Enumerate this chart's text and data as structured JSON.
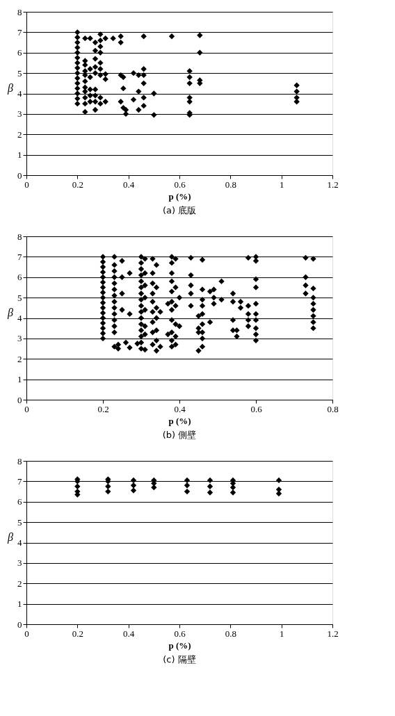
{
  "chart_data": [
    {
      "type": "scatter",
      "title": "(a) 底版",
      "xlabel": "p (%)",
      "ylabel": "β",
      "xlim": [
        0,
        1.2
      ],
      "xticks": [
        0,
        0.2,
        0.4,
        0.6,
        0.8,
        1,
        1.2
      ],
      "ylim": [
        0,
        8
      ],
      "yticks": [
        0,
        1,
        2,
        3,
        4,
        5,
        6,
        7,
        8
      ],
      "grid": "y",
      "marker": "diamond",
      "legend": false,
      "series": [
        {
          "color": "#000000",
          "x": [
            0.2,
            0.2,
            0.2,
            0.2,
            0.2,
            0.2,
            0.2,
            0.2,
            0.2,
            0.2,
            0.2,
            0.2,
            0.2,
            0.2,
            0.2,
            0.23,
            0.23,
            0.23,
            0.23,
            0.23,
            0.23,
            0.23,
            0.23,
            0.23,
            0.23,
            0.23,
            0.25,
            0.25,
            0.25,
            0.25,
            0.25,
            0.25,
            0.27,
            0.27,
            0.27,
            0.27,
            0.27,
            0.27,
            0.27,
            0.27,
            0.27,
            0.29,
            0.29,
            0.29,
            0.29,
            0.29,
            0.29,
            0.29,
            0.29,
            0.29,
            0.31,
            0.31,
            0.31,
            0.31,
            0.34,
            0.37,
            0.37,
            0.37,
            0.37,
            0.38,
            0.38,
            0.38,
            0.39,
            0.39,
            0.42,
            0.42,
            0.44,
            0.44,
            0.44,
            0.46,
            0.46,
            0.46,
            0.46,
            0.46,
            0.46,
            0.5,
            0.5,
            0.57,
            0.64,
            0.64,
            0.64,
            0.64,
            0.64,
            0.64,
            0.64,
            0.68,
            0.68,
            0.68,
            0.68,
            1.06,
            1.06,
            1.06,
            1.06
          ],
          "values": [
            3.5,
            3.75,
            4.0,
            4.25,
            4.5,
            4.75,
            5.0,
            5.25,
            5.5,
            5.75,
            6.0,
            6.25,
            6.5,
            6.75,
            7.0,
            3.1,
            3.5,
            3.8,
            4.1,
            4.3,
            4.6,
            4.9,
            5.1,
            5.4,
            5.6,
            6.7,
            3.6,
            3.9,
            4.2,
            4.8,
            5.2,
            6.7,
            3.2,
            3.6,
            3.9,
            4.2,
            5.0,
            5.3,
            5.7,
            6.1,
            6.5,
            3.5,
            3.8,
            4.9,
            5.2,
            5.5,
            6.0,
            6.3,
            6.6,
            6.9,
            3.6,
            4.7,
            4.95,
            6.7,
            6.7,
            3.6,
            4.9,
            6.5,
            6.8,
            4.25,
            3.3,
            4.8,
            3.0,
            3.2,
            3.7,
            5.0,
            3.2,
            4.1,
            4.9,
            3.4,
            3.8,
            4.5,
            4.9,
            5.2,
            6.8,
            2.95,
            4.0,
            6.8,
            2.95,
            3.05,
            3.6,
            3.8,
            4.5,
            4.8,
            5.1,
            4.5,
            4.65,
            6.0,
            6.85,
            3.6,
            3.8,
            4.1,
            4.4
          ]
        }
      ]
    },
    {
      "type": "scatter",
      "title": "(b) 側壁",
      "xlabel": "p (%)",
      "ylabel": "β",
      "xlim": [
        0,
        0.8
      ],
      "xticks": [
        0,
        0.2,
        0.4,
        0.6,
        0.8
      ],
      "ylim": [
        0,
        8
      ],
      "yticks": [
        0,
        1,
        2,
        3,
        4,
        5,
        6,
        7,
        8
      ],
      "grid": "y",
      "marker": "diamond",
      "legend": false,
      "series": [
        {
          "color": "#000000",
          "x": [
            0.2,
            0.2,
            0.2,
            0.2,
            0.2,
            0.2,
            0.2,
            0.2,
            0.2,
            0.2,
            0.2,
            0.2,
            0.2,
            0.2,
            0.2,
            0.2,
            0.2,
            0.23,
            0.23,
            0.23,
            0.23,
            0.23,
            0.23,
            0.23,
            0.23,
            0.23,
            0.23,
            0.23,
            0.23,
            0.23,
            0.23,
            0.24,
            0.24,
            0.25,
            0.25,
            0.25,
            0.25,
            0.26,
            0.27,
            0.27,
            0.27,
            0.29,
            0.3,
            0.3,
            0.3,
            0.3,
            0.3,
            0.3,
            0.3,
            0.3,
            0.3,
            0.3,
            0.3,
            0.3,
            0.3,
            0.3,
            0.3,
            0.3,
            0.31,
            0.31,
            0.31,
            0.31,
            0.31,
            0.31,
            0.31,
            0.31,
            0.33,
            0.33,
            0.33,
            0.33,
            0.33,
            0.33,
            0.33,
            0.33,
            0.33,
            0.34,
            0.34,
            0.34,
            0.34,
            0.34,
            0.34,
            0.34,
            0.35,
            0.35,
            0.37,
            0.37,
            0.38,
            0.38,
            0.38,
            0.38,
            0.38,
            0.38,
            0.38,
            0.38,
            0.38,
            0.38,
            0.38,
            0.39,
            0.39,
            0.39,
            0.39,
            0.39,
            0.39,
            0.4,
            0.4,
            0.43,
            0.43,
            0.43,
            0.43,
            0.43,
            0.45,
            0.45,
            0.45,
            0.45,
            0.46,
            0.46,
            0.46,
            0.46,
            0.46,
            0.46,
            0.46,
            0.46,
            0.46,
            0.48,
            0.48,
            0.49,
            0.49,
            0.49,
            0.51,
            0.51,
            0.54,
            0.54,
            0.54,
            0.54,
            0.55,
            0.55,
            0.56,
            0.56,
            0.58,
            0.58,
            0.58,
            0.58,
            0.58,
            0.6,
            0.6,
            0.6,
            0.6,
            0.6,
            0.6,
            0.6,
            0.6,
            0.6,
            0.6,
            0.73,
            0.73,
            0.73,
            0.73,
            0.75,
            0.75,
            0.75,
            0.75,
            0.75,
            0.75,
            0.75,
            0.75
          ],
          "values": [
            3.0,
            3.25,
            3.5,
            3.75,
            4.0,
            4.25,
            4.5,
            4.75,
            5.0,
            5.25,
            5.5,
            5.75,
            6.0,
            6.25,
            6.5,
            6.75,
            7.0,
            2.6,
            3.3,
            3.6,
            3.9,
            4.2,
            4.5,
            4.8,
            5.1,
            5.4,
            5.7,
            6.0,
            6.3,
            6.6,
            7.0,
            2.5,
            2.7,
            4.4,
            5.2,
            6.0,
            6.8,
            2.8,
            2.55,
            4.2,
            6.2,
            2.75,
            2.5,
            2.8,
            3.1,
            3.4,
            3.7,
            4.0,
            4.3,
            4.6,
            4.9,
            5.2,
            5.5,
            5.8,
            6.1,
            6.4,
            6.7,
            7.0,
            2.45,
            3.2,
            3.6,
            4.4,
            5.0,
            5.6,
            6.2,
            6.9,
            2.7,
            3.3,
            3.8,
            4.3,
            4.8,
            5.2,
            5.7,
            6.2,
            6.9,
            2.4,
            2.9,
            3.4,
            4.0,
            4.5,
            5.5,
            6.6,
            2.6,
            4.3,
            3.2,
            4.7,
            2.6,
            2.9,
            3.3,
            3.9,
            4.4,
            4.8,
            5.3,
            5.8,
            6.2,
            6.7,
            7.0,
            2.7,
            3.1,
            3.7,
            4.6,
            5.5,
            6.9,
            3.6,
            5.0,
            4.6,
            5.2,
            5.6,
            6.1,
            6.95,
            2.4,
            3.3,
            3.5,
            4.1,
            2.6,
            3.0,
            3.3,
            3.7,
            4.2,
            4.6,
            4.9,
            5.4,
            6.85,
            3.8,
            5.3,
            4.7,
            5.0,
            5.4,
            4.9,
            5.8,
            3.4,
            3.9,
            4.8,
            5.2,
            3.1,
            3.4,
            4.5,
            4.8,
            3.6,
            3.9,
            4.2,
            4.6,
            6.95,
            2.9,
            3.2,
            3.5,
            3.9,
            4.2,
            4.7,
            5.5,
            5.9,
            6.8,
            7.0,
            5.2,
            5.6,
            6.0,
            6.95,
            3.5,
            3.8,
            4.1,
            4.4,
            4.7,
            5.0,
            5.45,
            6.9
          ]
        }
      ]
    },
    {
      "type": "scatter",
      "title": "(c) 隔壁",
      "xlabel": "p (%)",
      "ylabel": "β",
      "xlim": [
        0,
        1.2
      ],
      "xticks": [
        0,
        0.2,
        0.4,
        0.6,
        0.8,
        1,
        1.2
      ],
      "ylim": [
        0,
        8
      ],
      "yticks": [
        0,
        1,
        2,
        3,
        4,
        5,
        6,
        7,
        8
      ],
      "grid": "y",
      "marker": "diamond",
      "legend": false,
      "series": [
        {
          "color": "#000000",
          "x": [
            0.2,
            0.2,
            0.2,
            0.2,
            0.2,
            0.32,
            0.32,
            0.32,
            0.32,
            0.42,
            0.42,
            0.42,
            0.5,
            0.5,
            0.5,
            0.63,
            0.63,
            0.63,
            0.72,
            0.72,
            0.72,
            0.81,
            0.81,
            0.81,
            0.81,
            0.99,
            0.99,
            0.99
          ],
          "values": [
            6.35,
            6.5,
            6.75,
            7.0,
            7.1,
            6.5,
            6.75,
            7.0,
            7.1,
            6.55,
            6.8,
            7.05,
            6.7,
            6.9,
            7.05,
            6.5,
            6.8,
            7.05,
            6.45,
            6.75,
            7.05,
            6.45,
            6.7,
            6.9,
            7.05,
            6.4,
            6.6,
            7.05
          ]
        }
      ]
    }
  ]
}
